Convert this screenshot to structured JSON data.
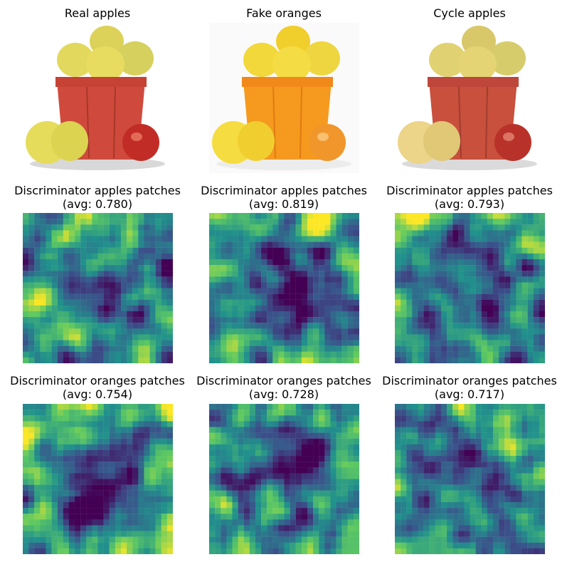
{
  "row1": {
    "titles": [
      "Real apples",
      "Fake oranges",
      "Cycle apples"
    ]
  },
  "row2": {
    "title_line1": "Discriminator apples patches",
    "avgs": [
      "(avg: 0.780)",
      "(avg: 0.819)",
      "(avg: 0.793)"
    ]
  },
  "row3": {
    "title_line1": "Discriminator oranges patches",
    "avgs": [
      "(avg: 0.754)",
      "(avg: 0.728)",
      "(avg: 0.717)"
    ]
  },
  "colormap": "viridis",
  "colors": {
    "viridis_low": "#440154",
    "viridis_mid": "#21918c",
    "viridis_high": "#fde725",
    "basket_red": "#cf4a3c",
    "basket_orange": "#f08a1c",
    "apple_yellow": "#e4d75a"
  }
}
